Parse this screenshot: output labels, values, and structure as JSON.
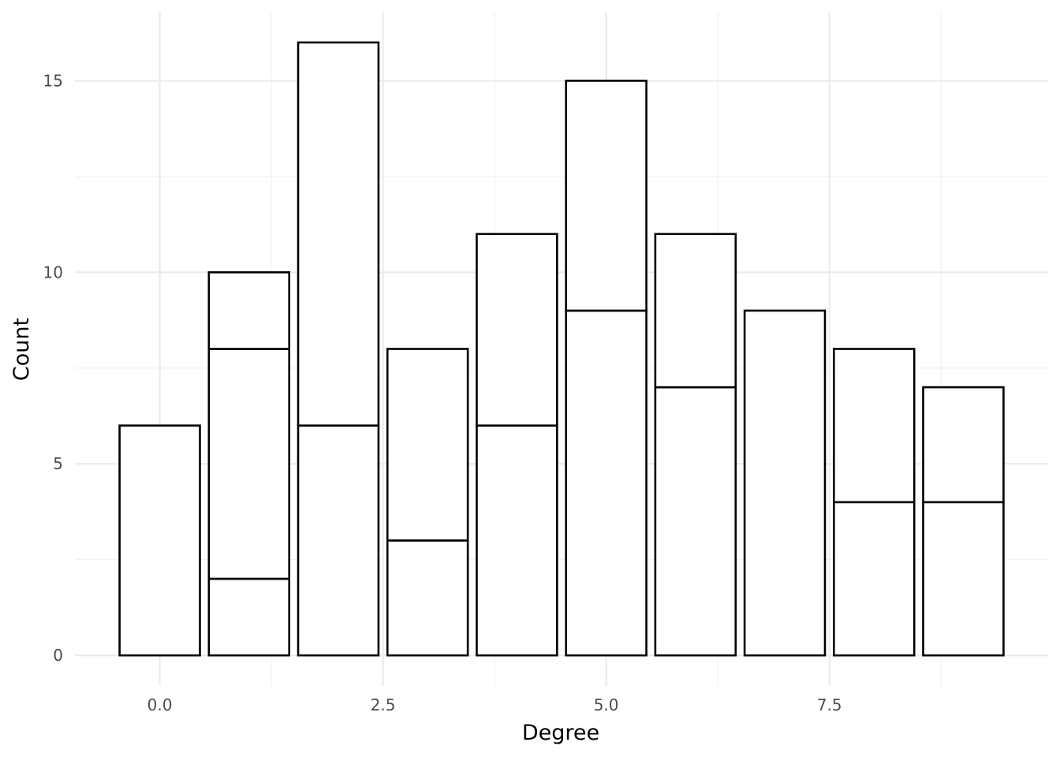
{
  "chart_data": {
    "type": "bar",
    "stacked": true,
    "xlabel": "Degree",
    "ylabel": "Count",
    "xlim": [
      -0.95,
      9.95
    ],
    "ylim": [
      -0.8,
      16.8
    ],
    "xticks": [
      0.0,
      2.5,
      5.0,
      7.5
    ],
    "xtick_labels": [
      "0.0",
      "2.5",
      "5.0",
      "7.5"
    ],
    "yticks": [
      0,
      5,
      10,
      15
    ],
    "ytick_labels": [
      "0",
      "5",
      "10",
      "15"
    ],
    "grid": true,
    "legend": "none",
    "bar_width": 0.9,
    "bars": [
      {
        "x": 0,
        "segments": [
          6
        ]
      },
      {
        "x": 1,
        "segments": [
          2,
          6,
          2
        ]
      },
      {
        "x": 2,
        "segments": [
          6,
          10
        ]
      },
      {
        "x": 3,
        "segments": [
          3,
          5
        ]
      },
      {
        "x": 4,
        "segments": [
          6,
          5
        ]
      },
      {
        "x": 5,
        "segments": [
          9,
          6
        ]
      },
      {
        "x": 6,
        "segments": [
          7,
          4
        ]
      },
      {
        "x": 7,
        "segments": [
          9
        ]
      },
      {
        "x": 8,
        "segments": [
          4,
          4
        ]
      },
      {
        "x": 9,
        "segments": [
          4,
          3
        ]
      }
    ],
    "colors": {
      "fill": "#ffffff",
      "outline": "#000000",
      "grid_major": "#ebebeb",
      "grid_minor": "#f3f3f3"
    }
  }
}
